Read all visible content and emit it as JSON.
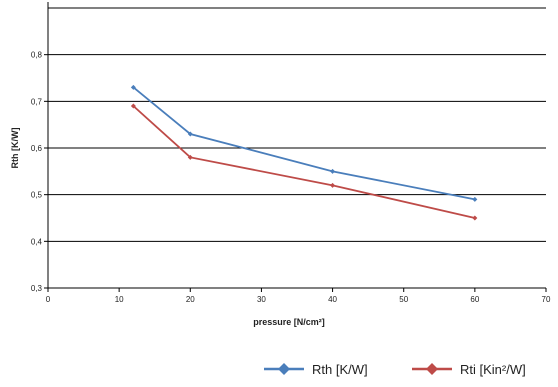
{
  "chart_data": {
    "type": "line",
    "title": "",
    "xlabel": "pressure [N/cm²]",
    "ylabel": "Rth [K/W]",
    "xlim": [
      0,
      70
    ],
    "ylim": [
      0.3,
      0.9
    ],
    "xticks": [
      0,
      10,
      20,
      30,
      40,
      50,
      60,
      70
    ],
    "xtick_labels": [
      "0",
      "10",
      "20",
      "30",
      "40",
      "50",
      "60",
      "70"
    ],
    "yticks": [
      0.3,
      0.4,
      0.5,
      0.6,
      0.7,
      0.8
    ],
    "ytick_labels": [
      "0,3",
      "0,4",
      "0,5",
      "0,6",
      "0,7",
      "0,8"
    ],
    "grid": "horizontal",
    "legend_position": "bottom-right",
    "series": [
      {
        "name": "Rth [K/W]",
        "color": "#4a7ebb",
        "marker": "diamond",
        "x": [
          12,
          20,
          40,
          60
        ],
        "y": [
          0.73,
          0.63,
          0.55,
          0.49
        ]
      },
      {
        "name": "Rti [Kin²/W]",
        "color": "#be4b48",
        "marker": "diamond",
        "x": [
          12,
          20,
          40,
          60
        ],
        "y": [
          0.69,
          0.58,
          0.52,
          0.45
        ]
      }
    ]
  }
}
